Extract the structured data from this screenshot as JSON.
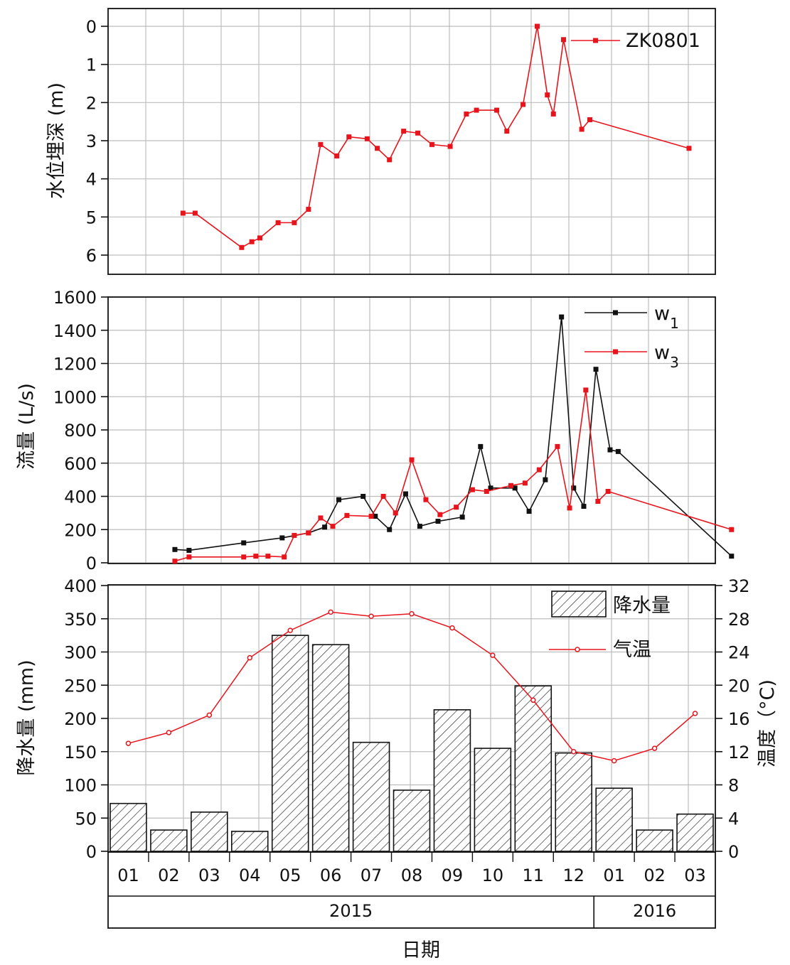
{
  "chart_data": [
    {
      "type": "line",
      "panel": "water-level",
      "ylabel": "水位埋深 (m)",
      "ylim": [
        0,
        6
      ],
      "yaxis_inverted": true,
      "yticks": [
        "0",
        "1",
        "2",
        "3",
        "4",
        "5",
        "6"
      ],
      "grid": true,
      "legend_position": "top-right",
      "series": [
        {
          "name": "ZK0801",
          "color": "#e8141c",
          "marker": "square",
          "points": [
            [
              1.85,
              4.9
            ],
            [
              2.15,
              4.9
            ],
            [
              3.3,
              5.8
            ],
            [
              3.55,
              5.65
            ],
            [
              3.75,
              5.55
            ],
            [
              4.2,
              5.15
            ],
            [
              4.6,
              5.15
            ],
            [
              4.95,
              4.8
            ],
            [
              5.25,
              3.1
            ],
            [
              5.65,
              3.4
            ],
            [
              5.95,
              2.9
            ],
            [
              6.4,
              2.95
            ],
            [
              6.65,
              3.2
            ],
            [
              6.95,
              3.5
            ],
            [
              7.3,
              2.75
            ],
            [
              7.65,
              2.8
            ],
            [
              8.0,
              3.1
            ],
            [
              8.45,
              3.15
            ],
            [
              8.85,
              2.3
            ],
            [
              9.1,
              2.2
            ],
            [
              9.6,
              2.2
            ],
            [
              9.85,
              2.75
            ],
            [
              10.25,
              2.05
            ],
            [
              10.6,
              0.0
            ],
            [
              10.85,
              1.8
            ],
            [
              11.0,
              2.3
            ],
            [
              11.25,
              0.35
            ],
            [
              11.7,
              2.7
            ],
            [
              11.9,
              2.45
            ],
            [
              14.35,
              3.2
            ]
          ]
        }
      ]
    },
    {
      "type": "line",
      "panel": "discharge",
      "ylabel": "流量 (L/s)",
      "ylim": [
        0,
        1600
      ],
      "yticks": [
        "0",
        "200",
        "400",
        "600",
        "800",
        "1000",
        "1200",
        "1400",
        "1600"
      ],
      "grid": true,
      "legend_position": "top-right",
      "series": [
        {
          "name": "w",
          "subscript": "1",
          "color": "#111111",
          "marker": "square",
          "points": [
            [
              1.65,
              80
            ],
            [
              2.0,
              75
            ],
            [
              3.35,
              120
            ],
            [
              4.3,
              150
            ],
            [
              4.95,
              180
            ],
            [
              5.35,
              215
            ],
            [
              5.7,
              380
            ],
            [
              6.3,
              400
            ],
            [
              6.6,
              280
            ],
            [
              6.95,
              200
            ],
            [
              7.35,
              415
            ],
            [
              7.7,
              220
            ],
            [
              8.15,
              250
            ],
            [
              8.75,
              275
            ],
            [
              9.2,
              700
            ],
            [
              9.45,
              450
            ],
            [
              10.05,
              450
            ],
            [
              10.4,
              310
            ],
            [
              10.8,
              500
            ],
            [
              11.2,
              1480
            ],
            [
              11.5,
              450
            ],
            [
              11.75,
              340
            ],
            [
              12.05,
              1165
            ],
            [
              12.4,
              680
            ],
            [
              12.6,
              670
            ],
            [
              15.4,
              40
            ]
          ]
        },
        {
          "name": "w",
          "subscript": "3",
          "color": "#e8141c",
          "marker": "square",
          "points": [
            [
              1.65,
              10
            ],
            [
              2.0,
              35
            ],
            [
              3.35,
              35
            ],
            [
              3.65,
              40
            ],
            [
              3.95,
              40
            ],
            [
              4.35,
              35
            ],
            [
              4.6,
              165
            ],
            [
              4.95,
              180
            ],
            [
              5.25,
              270
            ],
            [
              5.55,
              220
            ],
            [
              5.9,
              285
            ],
            [
              6.5,
              280
            ],
            [
              6.8,
              400
            ],
            [
              7.1,
              300
            ],
            [
              7.5,
              620
            ],
            [
              7.85,
              380
            ],
            [
              8.2,
              290
            ],
            [
              8.6,
              335
            ],
            [
              9.0,
              440
            ],
            [
              9.35,
              430
            ],
            [
              9.95,
              465
            ],
            [
              10.3,
              480
            ],
            [
              10.65,
              560
            ],
            [
              11.1,
              700
            ],
            [
              11.4,
              330
            ],
            [
              11.8,
              1040
            ],
            [
              12.1,
              370
            ],
            [
              12.35,
              430
            ],
            [
              15.4,
              200
            ]
          ]
        }
      ]
    },
    {
      "type": "bar+line",
      "panel": "climate",
      "categories": [
        "01",
        "02",
        "03",
        "04",
        "05",
        "06",
        "07",
        "08",
        "09",
        "10",
        "11",
        "12",
        "01",
        "02",
        "03"
      ],
      "years": [
        {
          "label": "2015",
          "months": 12
        },
        {
          "label": "2016",
          "months": 3
        }
      ],
      "xlabel": "日期",
      "ylabel": "降水量 (mm)",
      "y2label": "温度（°C)",
      "ylim": [
        0,
        400
      ],
      "y2lim": [
        0,
        32
      ],
      "yticks": [
        "0",
        "50",
        "100",
        "150",
        "200",
        "250",
        "300",
        "350",
        "400"
      ],
      "y2ticks": [
        "0",
        "4",
        "8",
        "12",
        "16",
        "20",
        "24",
        "28",
        "32"
      ],
      "grid": true,
      "legend_position": "top-right",
      "series": [
        {
          "name": "降水量",
          "kind": "bar",
          "pattern": "diagonal-hatch",
          "values": [
            72,
            32,
            59,
            30,
            325,
            311,
            164,
            92,
            213,
            155,
            249,
            148,
            95,
            32,
            56
          ]
        },
        {
          "name": "气温",
          "kind": "line",
          "axis": "y2",
          "color": "#e8141c",
          "marker": "circle",
          "values": [
            13.0,
            14.3,
            16.4,
            23.3,
            26.6,
            28.8,
            28.3,
            28.6,
            26.9,
            23.6,
            18.2,
            12.0,
            10.9,
            12.4,
            16.6
          ]
        }
      ]
    }
  ]
}
